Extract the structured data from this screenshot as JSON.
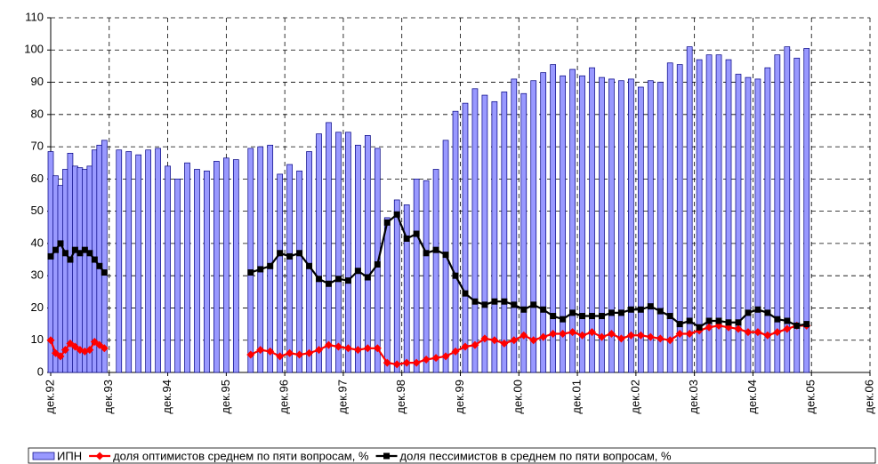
{
  "chart_data": {
    "type": "bar",
    "x": [
      "1992-12",
      "1993-01",
      "1993-02",
      "1993-03",
      "1993-04",
      "1993-05",
      "1993-06",
      "1993-07",
      "1993-08",
      "1993-09",
      "1993-10",
      "1993-11",
      "1994-02",
      "1994-04",
      "1994-06",
      "1994-08",
      "1994-10",
      "1994-12",
      "1995-02",
      "1995-04",
      "1995-06",
      "1995-08",
      "1995-10",
      "1995-12",
      "1996-02",
      "1996-05",
      "1996-07",
      "1996-09",
      "1996-11",
      "1997-01",
      "1997-03",
      "1997-05",
      "1997-07",
      "1997-09",
      "1997-11",
      "1998-01",
      "1998-03",
      "1998-05",
      "1998-07",
      "1998-09",
      "1998-11",
      "1999-01",
      "1999-03",
      "1999-05",
      "1999-07",
      "1999-09",
      "1999-11",
      "2000-01",
      "2000-03",
      "2000-05",
      "2000-07",
      "2000-09",
      "2000-11",
      "2001-01",
      "2001-03",
      "2001-05",
      "2001-07",
      "2001-09",
      "2001-11",
      "2002-01",
      "2002-03",
      "2002-05",
      "2002-07",
      "2002-09",
      "2002-11",
      "2003-01",
      "2003-03",
      "2003-05",
      "2003-07",
      "2003-09",
      "2003-11",
      "2004-01",
      "2004-03",
      "2004-05",
      "2004-07",
      "2004-09",
      "2004-11",
      "2005-01",
      "2005-03",
      "2005-05",
      "2005-07",
      "2005-09",
      "2005-11"
    ],
    "series": [
      {
        "name": "ИПН",
        "type": "bar",
        "color": "#9999ff",
        "edge": "#000080",
        "values": [
          68.5,
          61,
          58,
          63,
          68,
          64,
          63.5,
          63,
          64,
          69,
          70.5,
          72,
          69,
          68.5,
          67.5,
          69,
          69.5,
          64,
          60,
          65,
          63,
          62.5,
          65.5,
          66.5,
          66,
          69.5,
          70,
          70.5,
          61.5,
          64.5,
          62.5,
          68.5,
          74,
          77.5,
          74.5,
          74.5,
          70.5,
          73.5,
          69.5,
          48,
          53.5,
          52,
          60,
          59.5,
          63,
          72,
          81,
          83.5,
          88,
          86,
          84,
          87,
          91,
          86.5,
          90.5,
          93,
          95.5,
          92,
          94,
          92,
          94.5,
          91.5,
          91,
          90.5,
          91,
          88.5,
          90.5,
          90,
          96,
          95.5,
          101,
          97,
          98.5,
          98.5,
          97,
          92.5,
          91.5,
          91,
          94.5,
          98.5,
          101,
          97.5,
          100.5
        ]
      },
      {
        "name": "доля оптимистов среднем по пяти вопросам, %",
        "type": "line",
        "marker": "diamond",
        "color": "#ff0000",
        "values": [
          10,
          6,
          5,
          7,
          9,
          8,
          7,
          6.5,
          7,
          9.5,
          8.5,
          7.5,
          null,
          null,
          null,
          null,
          null,
          null,
          null,
          null,
          null,
          null,
          null,
          null,
          null,
          5.5,
          7,
          6.5,
          5,
          6,
          5.5,
          6,
          7,
          8.5,
          8,
          7.5,
          7,
          7.5,
          7.5,
          3,
          2.5,
          3,
          3,
          4,
          4.5,
          5,
          6.5,
          8,
          8.5,
          10.5,
          10,
          9,
          10,
          11.5,
          10,
          11,
          12,
          12,
          12.5,
          11.5,
          12.5,
          11,
          12,
          10.5,
          11.5,
          11.5,
          11,
          10.5,
          10,
          12,
          12,
          13,
          14,
          14.5,
          14,
          13.5,
          12.5,
          12.5,
          11.5,
          12.5,
          13.5,
          14.5,
          14.5
        ]
      },
      {
        "name": "доля пессимистов в среднем по пяти вопросам, %",
        "type": "line",
        "marker": "square",
        "color": "#000000",
        "values": [
          36,
          38,
          40,
          37,
          35,
          38,
          37,
          38,
          37,
          35,
          33,
          31,
          null,
          null,
          null,
          null,
          null,
          null,
          null,
          null,
          null,
          null,
          null,
          null,
          null,
          31,
          32,
          33,
          37,
          36,
          37,
          33,
          29,
          27.5,
          29,
          28.5,
          31.5,
          29.5,
          33.5,
          46.5,
          49,
          41.5,
          43,
          37,
          38,
          36.5,
          30,
          24.5,
          22,
          21,
          22,
          22,
          21,
          19.5,
          21,
          19.5,
          17.5,
          16.5,
          18.5,
          17.5,
          17.5,
          17.5,
          18.5,
          18.5,
          19.5,
          19.5,
          20.5,
          19,
          17.5,
          15,
          16,
          14,
          16,
          16,
          15.5,
          15.5,
          18.5,
          19.5,
          18.5,
          16.5,
          16,
          14.5,
          15
        ]
      }
    ],
    "xlim": [
      "1992-12",
      "2006-12"
    ],
    "xticks": [
      {
        "value": "1992-12",
        "label": "дек.92"
      },
      {
        "value": "1993-12",
        "label": "дек.93"
      },
      {
        "value": "1994-12",
        "label": "дек.94"
      },
      {
        "value": "1995-12",
        "label": "дек.95"
      },
      {
        "value": "1996-12",
        "label": "дек.96"
      },
      {
        "value": "1997-12",
        "label": "дек.97"
      },
      {
        "value": "1998-12",
        "label": "дек.98"
      },
      {
        "value": "1999-12",
        "label": "дек.99"
      },
      {
        "value": "2000-12",
        "label": "дек.00"
      },
      {
        "value": "2001-12",
        "label": "дек.01"
      },
      {
        "value": "2002-12",
        "label": "дек.02"
      },
      {
        "value": "2003-12",
        "label": "дек.03"
      },
      {
        "value": "2004-12",
        "label": "дек.04"
      },
      {
        "value": "2005-12",
        "label": "дек.05"
      },
      {
        "value": "2006-12",
        "label": "дек.06"
      }
    ],
    "ylim": [
      0,
      110
    ],
    "yticks": [
      0,
      10,
      20,
      30,
      40,
      50,
      60,
      70,
      80,
      90,
      100,
      110
    ],
    "grid": true,
    "legend": "bottom"
  }
}
